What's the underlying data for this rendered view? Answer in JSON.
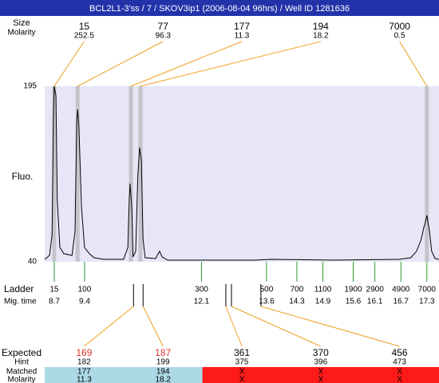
{
  "title": "BCL2L1-3'ss / 7 / SKOV3ip1 (2006-08-04 96hrs) / Well ID 1281636",
  "header_labels": [
    "Size",
    "Molarity"
  ],
  "chart_data": {
    "type": "electropherogram",
    "ylabel": "Fluo.",
    "xlim": [
      8.48,
      17.58
    ],
    "ylim": [
      40,
      195
    ],
    "yticks": [
      40,
      195
    ],
    "line_color": "#000000",
    "plot_color": "#e6e6f7",
    "band_color": "#c4c4cc",
    "connector_color": "#f0a020",
    "trace": {
      "time": [
        8.48,
        8.59,
        8.65,
        8.68,
        8.7,
        8.74,
        8.77,
        8.83,
        8.92,
        9.11,
        9.18,
        9.22,
        9.24,
        9.27,
        9.33,
        9.4,
        9.51,
        9.62,
        9.84,
        10.3,
        10.4,
        10.43,
        10.45,
        10.49,
        10.52,
        10.58,
        10.63,
        10.67,
        10.71,
        10.75,
        10.8,
        11.04,
        11.13,
        11.19,
        11.32,
        12.05,
        13.34,
        13.71,
        15.18,
        16.66,
        16.93,
        17.06,
        17.17,
        17.23,
        17.26,
        17.3,
        17.36,
        17.41,
        17.49,
        17.58
      ],
      "fluo": [
        42.1,
        45.6,
        63.3,
        165.4,
        195,
        186.5,
        95.0,
        52.7,
        47.1,
        45.6,
        66.8,
        165.4,
        174.6,
        158.4,
        87.9,
        52.7,
        47.1,
        43.5,
        42.1,
        42.1,
        52.7,
        95.0,
        109.0,
        87.9,
        44.2,
        49.2,
        116.1,
        140.8,
        130.2,
        59.7,
        43.5,
        42.8,
        49.2,
        44.2,
        41.4,
        41.4,
        41.4,
        42.1,
        41.4,
        42.1,
        43.5,
        49.2,
        59.7,
        70.3,
        73.8,
        80.9,
        66.8,
        49.2,
        42.8,
        42.1
      ]
    },
    "peaks": [
      {
        "size": 15,
        "molarity": 252.5,
        "time": 8.7
      },
      {
        "size": 77,
        "molarity": 96.3,
        "time": 9.24
      },
      {
        "size": 177,
        "molarity": 11.3,
        "time": 10.47
      },
      {
        "size": 194,
        "molarity": 18.2,
        "time": 10.69
      },
      {
        "size": 7000,
        "molarity": 0.5,
        "time": 17.3
      }
    ],
    "ladder": {
      "label": "Ladder",
      "time_label": "Mig. time",
      "color": "#2a9a2a",
      "sizes": [
        15,
        100,
        300,
        500,
        700,
        1100,
        1900,
        2900,
        4900,
        7000
      ],
      "times": [
        8.7,
        9.4,
        12.1,
        13.6,
        14.3,
        14.9,
        15.6,
        16.1,
        16.7,
        17.3
      ]
    },
    "expected": {
      "labels": [
        "Expected",
        "Hint",
        "Matched",
        "Molarity"
      ],
      "items": [
        {
          "size": 169,
          "hint": 182,
          "matched": 177,
          "molarity": 11.3,
          "time": 10.53,
          "color": "#e03030",
          "fill": "#add8e6"
        },
        {
          "size": 187,
          "hint": 199,
          "matched": 194,
          "molarity": 18.2,
          "time": 10.75,
          "color": "#e03030",
          "fill": "#add8e6"
        },
        {
          "size": 361,
          "hint": 375,
          "matched": "X",
          "molarity": "X",
          "time": 12.66,
          "color": "#000000",
          "fill": "#ff1a1a"
        },
        {
          "size": 370,
          "hint": 396,
          "matched": "X",
          "molarity": "X",
          "time": 12.79,
          "color": "#000000",
          "fill": "#ff1a1a"
        },
        {
          "size": 456,
          "hint": 473,
          "matched": "X",
          "molarity": "X",
          "time": 13.47,
          "color": "#000000",
          "fill": "#ff1a1a"
        }
      ]
    }
  }
}
